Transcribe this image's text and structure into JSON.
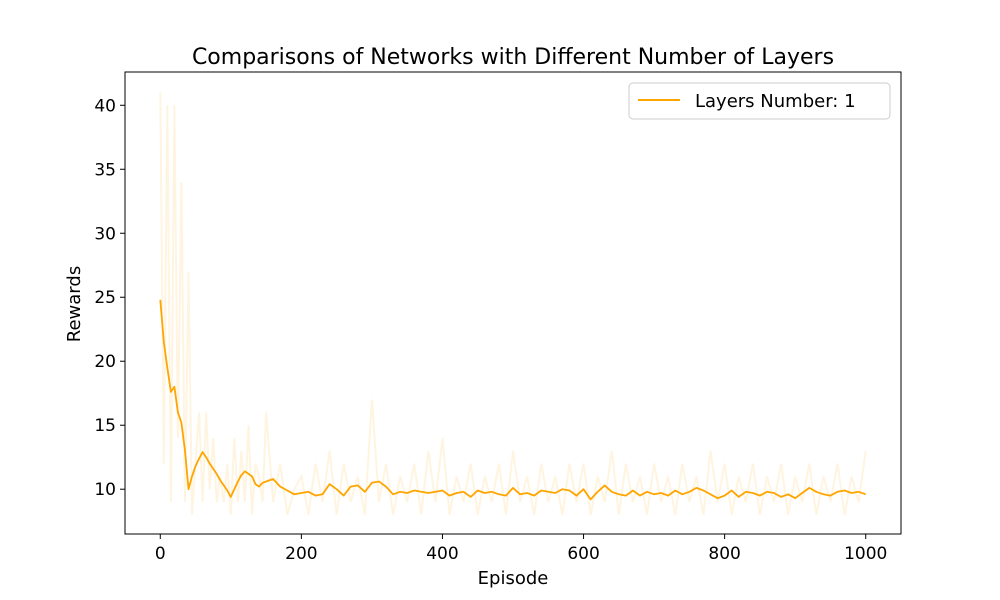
{
  "chart_data": {
    "type": "line",
    "title": "Comparisons of Networks with Different Number of Layers",
    "xlabel": "Episode",
    "ylabel": "Rewards",
    "xlim": [
      -50,
      1050
    ],
    "ylim": [
      6.5,
      42.6
    ],
    "xticks": [
      0,
      200,
      400,
      600,
      800,
      1000
    ],
    "yticks": [
      10,
      15,
      20,
      25,
      30,
      35,
      40
    ],
    "grid": false,
    "legend_position": "top-right",
    "series": [
      {
        "name": "Layers Number: 1",
        "color": "#ffa500",
        "role": "smoothed",
        "x": [
          0,
          5,
          10,
          15,
          20,
          25,
          30,
          35,
          40,
          45,
          50,
          55,
          60,
          65,
          70,
          75,
          80,
          85,
          90,
          95,
          100,
          105,
          110,
          115,
          120,
          125,
          130,
          135,
          140,
          145,
          150,
          160,
          170,
          180,
          190,
          200,
          210,
          220,
          230,
          240,
          250,
          260,
          270,
          280,
          290,
          300,
          310,
          320,
          330,
          340,
          350,
          360,
          370,
          380,
          390,
          400,
          410,
          420,
          430,
          440,
          450,
          460,
          470,
          480,
          490,
          500,
          510,
          520,
          530,
          540,
          550,
          560,
          570,
          580,
          590,
          600,
          610,
          620,
          630,
          640,
          650,
          660,
          670,
          680,
          690,
          700,
          710,
          720,
          730,
          740,
          750,
          760,
          770,
          780,
          790,
          800,
          810,
          820,
          830,
          840,
          850,
          860,
          870,
          880,
          890,
          900,
          910,
          920,
          930,
          940,
          950,
          960,
          970,
          980,
          990,
          1000
        ],
        "values": [
          24.8,
          21.5,
          19.5,
          17.6,
          18.0,
          16.0,
          15.2,
          13.0,
          10.0,
          11.0,
          11.8,
          12.4,
          12.9,
          12.5,
          12.0,
          11.6,
          11.2,
          10.7,
          10.3,
          9.9,
          9.4,
          10.0,
          10.6,
          11.1,
          11.4,
          11.2,
          11.0,
          10.4,
          10.2,
          10.5,
          10.6,
          10.8,
          10.2,
          9.9,
          9.6,
          9.7,
          9.8,
          9.5,
          9.6,
          10.4,
          10.0,
          9.5,
          10.2,
          10.3,
          9.8,
          10.5,
          10.6,
          10.2,
          9.6,
          9.8,
          9.7,
          9.9,
          9.8,
          9.7,
          9.8,
          9.9,
          9.5,
          9.7,
          9.8,
          9.4,
          9.9,
          9.7,
          9.8,
          9.6,
          9.5,
          10.1,
          9.6,
          9.7,
          9.5,
          9.9,
          9.8,
          9.7,
          10.0,
          9.9,
          9.5,
          10.0,
          9.2,
          9.8,
          10.3,
          9.8,
          9.6,
          9.5,
          9.9,
          9.5,
          9.8,
          9.6,
          9.7,
          9.5,
          9.9,
          9.6,
          9.8,
          10.1,
          9.9,
          9.6,
          9.3,
          9.5,
          9.9,
          9.4,
          9.8,
          9.7,
          9.5,
          9.8,
          9.7,
          9.4,
          9.6,
          9.3,
          9.7,
          10.1,
          9.8,
          9.6,
          9.5,
          9.8,
          9.9,
          9.7,
          9.8,
          9.6
        ]
      },
      {
        "name": "",
        "color": "#ffa500",
        "opacity": 0.12,
        "role": "raw",
        "x": [
          0,
          5,
          10,
          15,
          20,
          25,
          30,
          35,
          40,
          45,
          50,
          55,
          60,
          65,
          70,
          75,
          80,
          85,
          90,
          95,
          100,
          105,
          110,
          115,
          120,
          125,
          130,
          135,
          140,
          145,
          150,
          160,
          170,
          180,
          190,
          200,
          210,
          220,
          230,
          240,
          250,
          260,
          270,
          280,
          290,
          300,
          310,
          320,
          330,
          340,
          350,
          360,
          370,
          380,
          390,
          400,
          410,
          420,
          430,
          440,
          450,
          460,
          470,
          480,
          490,
          500,
          510,
          520,
          530,
          540,
          550,
          560,
          570,
          580,
          590,
          600,
          610,
          620,
          630,
          640,
          650,
          660,
          670,
          680,
          690,
          700,
          710,
          720,
          730,
          740,
          750,
          760,
          770,
          780,
          790,
          800,
          810,
          820,
          830,
          840,
          850,
          860,
          870,
          880,
          890,
          900,
          910,
          920,
          930,
          940,
          950,
          960,
          970,
          980,
          990,
          1000
        ],
        "values": [
          41,
          12,
          40,
          9,
          40,
          14,
          34,
          9,
          27,
          8,
          12,
          16,
          9,
          16,
          10,
          14,
          9,
          11,
          9,
          12,
          8,
          14,
          9,
          13,
          9,
          15,
          8,
          12,
          11,
          9,
          16,
          9,
          12,
          8,
          10,
          11,
          8,
          12,
          9,
          13,
          8,
          12,
          9,
          11,
          8,
          17,
          9,
          12,
          8,
          11,
          9,
          12,
          8,
          13,
          9,
          14,
          8,
          11,
          9,
          12,
          8,
          11,
          9,
          12,
          8,
          13,
          9,
          11,
          8,
          12,
          9,
          11,
          8,
          12,
          9,
          12,
          8,
          11,
          9,
          13,
          8,
          12,
          9,
          11,
          8,
          12,
          9,
          11,
          8,
          12,
          9,
          11,
          8,
          13,
          9,
          12,
          8,
          11,
          9,
          12,
          8,
          11,
          9,
          12,
          8,
          11,
          9,
          12,
          8,
          11,
          9,
          12,
          8,
          11,
          9,
          13
        ]
      }
    ]
  }
}
